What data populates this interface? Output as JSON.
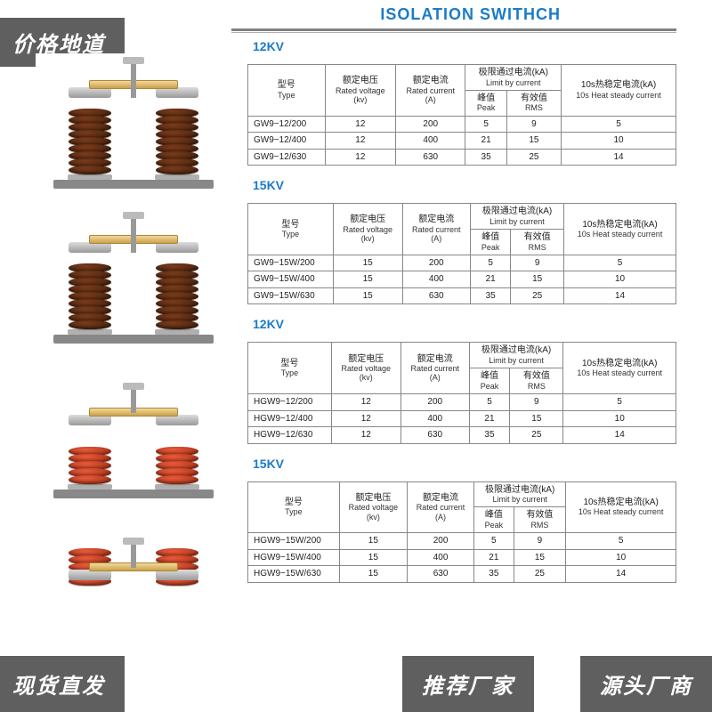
{
  "badges": {
    "top_left": "价格地道",
    "bottom_left": "现货直发",
    "bottom_right_1": "推荐厂家",
    "bottom_right_2": "源头厂商"
  },
  "page_title": "ISOLATION SWITHCH",
  "header_labels": {
    "type_cn": "型号",
    "type_en": "Type",
    "voltage_cn": "额定电压",
    "voltage_en": "Rated voltage",
    "voltage_unit": "(kv)",
    "current_cn": "额定电流",
    "current_en": "Rated current",
    "current_unit": "(A)",
    "limit_cn": "极限通过电流(kA)",
    "limit_en": "Limit by current",
    "peak_cn": "峰值",
    "peak_en": "Peak",
    "rms_cn": "有效值",
    "rms_en": "RMS",
    "heat_cn": "10s热稳定电流(kA)",
    "heat_en": "10s Heat steady current"
  },
  "sections": [
    {
      "title": "12KV",
      "insulator_color": "brown",
      "tall": true,
      "rows": [
        {
          "type": "GW9−12/200",
          "voltage": "12",
          "current": "200",
          "peak": "5",
          "rms": "9",
          "heat": "5"
        },
        {
          "type": "GW9−12/400",
          "voltage": "12",
          "current": "400",
          "peak": "21",
          "rms": "15",
          "heat": "10"
        },
        {
          "type": "GW9−12/630",
          "voltage": "12",
          "current": "630",
          "peak": "35",
          "rms": "25",
          "heat": "14"
        }
      ]
    },
    {
      "title": "15KV",
      "insulator_color": "brown",
      "tall": true,
      "rows": [
        {
          "type": "GW9−15W/200",
          "voltage": "15",
          "current": "200",
          "peak": "5",
          "rms": "9",
          "heat": "5"
        },
        {
          "type": "GW9−15W/400",
          "voltage": "15",
          "current": "400",
          "peak": "21",
          "rms": "15",
          "heat": "10"
        },
        {
          "type": "GW9−15W/630",
          "voltage": "15",
          "current": "630",
          "peak": "35",
          "rms": "25",
          "heat": "14"
        }
      ]
    },
    {
      "title": "12KV",
      "insulator_color": "red",
      "tall": false,
      "rows": [
        {
          "type": "HGW9−12/200",
          "voltage": "12",
          "current": "200",
          "peak": "5",
          "rms": "9",
          "heat": "5"
        },
        {
          "type": "HGW9−12/400",
          "voltage": "12",
          "current": "400",
          "peak": "21",
          "rms": "15",
          "heat": "10"
        },
        {
          "type": "HGW9−12/630",
          "voltage": "12",
          "current": "630",
          "peak": "35",
          "rms": "25",
          "heat": "14"
        }
      ]
    },
    {
      "title": "15KV",
      "insulator_color": "red",
      "tall": false,
      "rows": [
        {
          "type": "HGW9−15W/200",
          "voltage": "15",
          "current": "200",
          "peak": "5",
          "rms": "9",
          "heat": "5"
        },
        {
          "type": "HGW9−15W/400",
          "voltage": "15",
          "current": "400",
          "peak": "21",
          "rms": "15",
          "heat": "10"
        },
        {
          "type": "HGW9−15W/630",
          "voltage": "15",
          "current": "630",
          "peak": "35",
          "rms": "25",
          "heat": "14"
        }
      ]
    }
  ],
  "colors": {
    "accent": "#1b7bc8",
    "badge_bg": "#5f5f5f",
    "border": "#888888",
    "brown": "#5a2d12",
    "red": "#d9492c"
  }
}
